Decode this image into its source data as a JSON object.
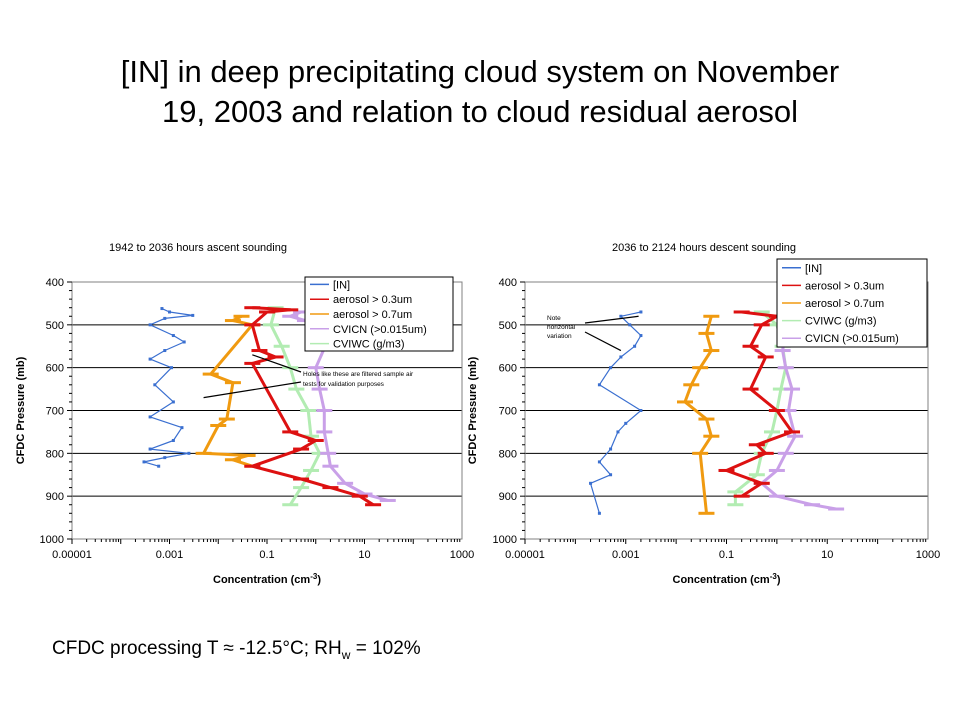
{
  "page": {
    "title_line1": "[IN] in deep precipitating cloud system on November",
    "title_line2": "19, 2003 and relation to cloud residual aerosol",
    "footer_main": "CFDC processing T ≈ -12.5°C; RH",
    "footer_sub": "w",
    "footer_tail": " = 102%"
  },
  "colors": {
    "IN": "#3a6fd0",
    "aerosol_03": "#dd1111",
    "aerosol_07": "#f09a10",
    "CVICN": "#c9a0e8",
    "CVIWC": "#b2ecb2"
  },
  "chart_data": [
    {
      "type": "line",
      "title": "1942 to 2036 hours ascent sounding",
      "xlabel": "Concentration (cm-3)",
      "ylabel": "CFDC Pressure (mb)",
      "x_scale": "log",
      "xlim": [
        1e-05,
        1000
      ],
      "ylim": [
        400,
        1000
      ],
      "y_inverted": true,
      "x_ticks": [
        "0.00001",
        "0.001",
        "0.1",
        "10",
        "1000"
      ],
      "y_ticks": [
        "400",
        "500",
        "600",
        "700",
        "800",
        "900",
        "1000"
      ],
      "grid": "horizontal-at-100mb",
      "legend_position": "top-right",
      "annotation": "Holes like these are filtered sample air tests for validation purposes",
      "series": [
        {
          "name": "[IN]",
          "key": "IN",
          "points": [
            [
              0.0007,
              462
            ],
            [
              0.001,
              470
            ],
            [
              0.003,
              478
            ],
            [
              0.0008,
              485
            ],
            [
              0.0004,
              500
            ],
            [
              0.0012,
              525
            ],
            [
              0.002,
              540
            ],
            [
              0.0008,
              560
            ],
            [
              0.0004,
              580
            ],
            [
              0.0011,
              600
            ],
            [
              0.0005,
              640
            ],
            [
              0.0012,
              680
            ],
            [
              0.0004,
              715
            ],
            [
              0.0018,
              740
            ],
            [
              0.0012,
              770
            ],
            [
              0.0004,
              790
            ],
            [
              0.0025,
              800
            ],
            [
              0.0008,
              810
            ],
            [
              0.0003,
              820
            ],
            [
              0.0006,
              830
            ]
          ]
        },
        {
          "name": "aerosol > 0.3um",
          "key": "aerosol_03",
          "points": [
            [
              0.05,
              460
            ],
            [
              0.3,
              465
            ],
            [
              0.1,
              470
            ],
            [
              0.05,
              500
            ],
            [
              0.07,
              560
            ],
            [
              0.15,
              575
            ],
            [
              0.05,
              590
            ],
            [
              0.3,
              750
            ],
            [
              1,
              770
            ],
            [
              0.5,
              790
            ],
            [
              0.05,
              830
            ],
            [
              0.5,
              860
            ],
            [
              2,
              880
            ],
            [
              8,
              900
            ],
            [
              15,
              920
            ]
          ]
        },
        {
          "name": "aerosol > 0.7um",
          "key": "aerosol_07",
          "points": [
            [
              0.03,
              480
            ],
            [
              0.02,
              490
            ],
            [
              0.05,
              500
            ],
            [
              0.007,
              615
            ],
            [
              0.02,
              635
            ],
            [
              0.015,
              720
            ],
            [
              0.01,
              735
            ],
            [
              0.005,
              800
            ],
            [
              0.04,
              805
            ],
            [
              0.02,
              815
            ],
            [
              0.05,
              830
            ]
          ]
        },
        {
          "name": "CVICN (>0.015um)",
          "key": "CVICN",
          "points": [
            [
              0.5,
              470
            ],
            [
              0.3,
              480
            ],
            [
              0.6,
              490
            ],
            [
              1,
              520
            ],
            [
              1.5,
              555
            ],
            [
              1,
              600
            ],
            [
              1.2,
              650
            ],
            [
              1.5,
              700
            ],
            [
              1.5,
              750
            ],
            [
              1.8,
              800
            ],
            [
              2,
              830
            ],
            [
              4,
              870
            ],
            [
              10,
              895
            ],
            [
              30,
              910
            ]
          ]
        },
        {
          "name": "CVIWC (g/m3)",
          "key": "CVIWC",
          "points": [
            [
              0.15,
              460
            ],
            [
              0.12,
              500
            ],
            [
              0.2,
              550
            ],
            [
              0.3,
              600
            ],
            [
              0.4,
              650
            ],
            [
              0.7,
              700
            ],
            [
              0.8,
              760
            ],
            [
              1.2,
              800
            ],
            [
              0.8,
              840
            ],
            [
              0.5,
              880
            ],
            [
              0.3,
              920
            ]
          ]
        }
      ]
    },
    {
      "type": "line",
      "title": "2036 to 2124 hours descent sounding",
      "xlabel": "Concentration (cm-3)",
      "ylabel": "CFDC Pressure (mb)",
      "x_scale": "log",
      "xlim": [
        1e-05,
        1000
      ],
      "ylim": [
        400,
        1000
      ],
      "y_inverted": true,
      "x_ticks": [
        "0.00001",
        "0.001",
        "0.1",
        "10",
        "1000"
      ],
      "y_ticks": [
        "400",
        "500",
        "600",
        "700",
        "800",
        "900",
        "1000"
      ],
      "grid": "horizontal-at-100mb",
      "legend_position": "top-right",
      "annotation": "Note horizontal variation",
      "series": [
        {
          "name": "[IN]",
          "key": "IN",
          "points": [
            [
              0.002,
              470
            ],
            [
              0.0008,
              480
            ],
            [
              0.0012,
              500
            ],
            [
              0.002,
              525
            ],
            [
              0.0015,
              550
            ],
            [
              0.0008,
              575
            ],
            [
              0.0005,
              600
            ],
            [
              0.0003,
              640
            ],
            [
              0.002,
              700
            ],
            [
              0.001,
              730
            ],
            [
              0.0007,
              750
            ],
            [
              0.0005,
              790
            ],
            [
              0.0003,
              820
            ],
            [
              0.0005,
              850
            ],
            [
              0.0002,
              870
            ],
            [
              0.0003,
              940
            ]
          ]
        },
        {
          "name": "aerosol > 0.3um",
          "key": "aerosol_03",
          "points": [
            [
              0.2,
              470
            ],
            [
              1,
              480
            ],
            [
              0.5,
              500
            ],
            [
              0.3,
              550
            ],
            [
              0.6,
              575
            ],
            [
              0.3,
              650
            ],
            [
              1,
              700
            ],
            [
              2,
              750
            ],
            [
              0.4,
              780
            ],
            [
              0.6,
              800
            ],
            [
              0.1,
              840
            ],
            [
              0.5,
              870
            ],
            [
              0.2,
              900
            ]
          ]
        },
        {
          "name": "aerosol > 0.7um",
          "key": "aerosol_07",
          "points": [
            [
              0.05,
              480
            ],
            [
              0.04,
              520
            ],
            [
              0.05,
              560
            ],
            [
              0.03,
              600
            ],
            [
              0.02,
              640
            ],
            [
              0.015,
              680
            ],
            [
              0.04,
              720
            ],
            [
              0.05,
              760
            ],
            [
              0.03,
              800
            ],
            [
              0.04,
              940
            ]
          ]
        },
        {
          "name": "CVIWC (g/m3)",
          "key": "CVIWC",
          "points": [
            [
              0.5,
              470
            ],
            [
              1,
              500
            ],
            [
              1.3,
              550
            ],
            [
              1.5,
              600
            ],
            [
              1.2,
              650
            ],
            [
              1,
              700
            ],
            [
              0.8,
              750
            ],
            [
              0.5,
              800
            ],
            [
              0.4,
              850
            ],
            [
              0.15,
              890
            ],
            [
              0.15,
              920
            ]
          ]
        },
        {
          "name": "CVICN (>0.015um)",
          "key": "CVICN",
          "points": [
            [
              2,
              480
            ],
            [
              1.5,
              520
            ],
            [
              1.3,
              560
            ],
            [
              1.5,
              600
            ],
            [
              2,
              650
            ],
            [
              1.7,
              700
            ],
            [
              2.3,
              760
            ],
            [
              1.5,
              800
            ],
            [
              1,
              840
            ],
            [
              0.5,
              870
            ],
            [
              1,
              900
            ],
            [
              5,
              920
            ],
            [
              15,
              930
            ]
          ]
        }
      ]
    }
  ]
}
